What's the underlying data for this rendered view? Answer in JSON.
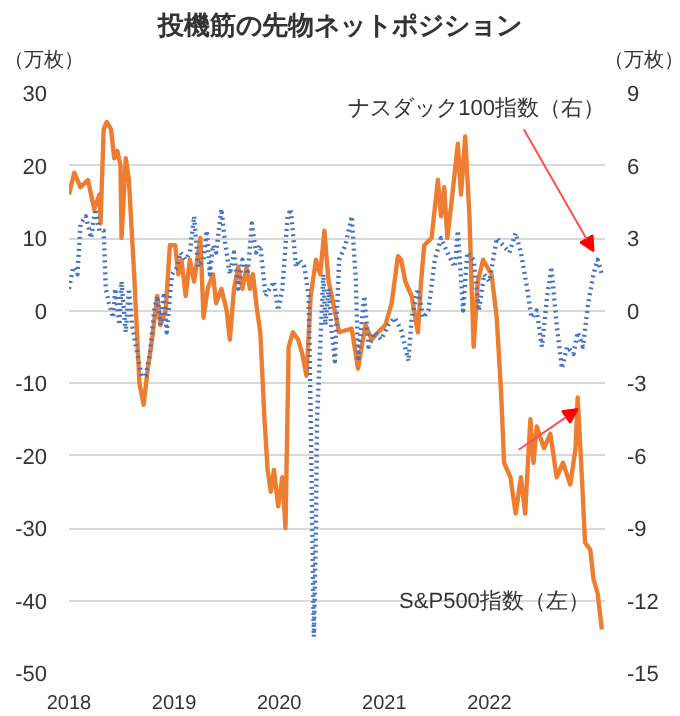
{
  "chart_data": {
    "type": "line",
    "title": "投機筋の先物ネットポジション",
    "ylabel": "（万枚）",
    "y2label": "（万枚）",
    "xlim": [
      2018,
      2023.1
    ],
    "xticks": [
      2018,
      2019,
      2020,
      2021,
      2022
    ],
    "ylim": [
      -50,
      30
    ],
    "yticks": [
      -50,
      -40,
      -30,
      -20,
      -10,
      0,
      10,
      20,
      30
    ],
    "y2lim": [
      -15,
      9
    ],
    "y2ticks": [
      -15,
      -12,
      -9,
      -6,
      -3,
      0,
      3,
      6,
      9
    ],
    "grid": "y",
    "series": [
      {
        "name": "S&P500指数（左）",
        "color": "#ed7d31",
        "line_style": "solid",
        "x": [
          2018.0,
          2018.05,
          2018.11,
          2018.18,
          2018.24,
          2018.29,
          2018.3,
          2018.33,
          2018.36,
          2018.4,
          2018.43,
          2018.46,
          2018.49,
          2018.5,
          2018.54,
          2018.57,
          2018.62,
          2018.67,
          2018.71,
          2018.75,
          2018.79,
          2018.84,
          2018.87,
          2018.92,
          2018.96,
          2019.01,
          2019.04,
          2019.07,
          2019.11,
          2019.15,
          2019.19,
          2019.25,
          2019.28,
          2019.32,
          2019.37,
          2019.4,
          2019.45,
          2019.5,
          2019.53,
          2019.57,
          2019.61,
          2019.65,
          2019.69,
          2019.72,
          2019.75,
          2019.79,
          2019.82,
          2019.86,
          2019.89,
          2019.92,
          2019.95,
          2019.99,
          2020.03,
          2020.06,
          2020.09,
          2020.13,
          2020.18,
          2020.22,
          2020.26,
          2020.3,
          2020.35,
          2020.39,
          2020.43,
          2020.47,
          2020.5,
          2020.57,
          2020.69,
          2020.75,
          2020.82,
          2020.88,
          2020.94,
          2021.01,
          2021.07,
          2021.13,
          2021.16,
          2021.2,
          2021.26,
          2021.32,
          2021.35,
          2021.38,
          2021.45,
          2021.51,
          2021.54,
          2021.57,
          2021.6,
          2021.64,
          2021.7,
          2021.73,
          2021.77,
          2021.81,
          2021.85,
          2021.89,
          2021.94,
          2021.98,
          2022.02,
          2022.07,
          2022.11,
          2022.14,
          2022.2,
          2022.25,
          2022.3,
          2022.34,
          2022.39,
          2022.42,
          2022.45,
          2022.52,
          2022.58,
          2022.64,
          2022.7,
          2022.77,
          2022.82,
          2022.84,
          2022.88,
          2022.91,
          2022.96,
          2022.99,
          2023.03,
          2023.07
        ],
        "values": [
          16,
          19,
          17,
          18,
          14,
          16,
          12,
          25,
          26,
          25,
          21,
          22,
          20,
          10,
          21,
          18,
          5,
          -10,
          -13,
          -8,
          -4,
          2,
          -2,
          0,
          9,
          9,
          5,
          7,
          2,
          7,
          4,
          10,
          -1,
          3,
          5,
          1,
          3,
          0,
          -4,
          3,
          6,
          3,
          6,
          3,
          5,
          0,
          -3,
          -15,
          -22,
          -25,
          -22,
          -27,
          -23,
          -30,
          -5,
          -3,
          -4,
          -6,
          -9,
          2,
          7,
          5,
          11,
          4,
          2,
          -3,
          -2.5,
          -8,
          -2,
          -4,
          -3,
          -2,
          1,
          7.5,
          7,
          4,
          2,
          -3,
          4,
          9,
          10,
          18,
          13,
          17,
          10,
          15,
          23,
          16,
          24,
          13,
          -5,
          4,
          7,
          6,
          5,
          -1,
          -11,
          -21,
          -23,
          -28,
          -23,
          -28,
          -15,
          -21,
          -16,
          -19,
          -17,
          -23,
          -21,
          -24,
          -19,
          -12,
          -23,
          -32,
          -33,
          -37,
          -39,
          -44
        ]
      },
      {
        "name": "ナスダック100指数（右）",
        "color": "#4472c4",
        "axis": "y2",
        "line_style": "dotted",
        "x": [
          2018.0,
          2018.04,
          2018.08,
          2018.11,
          2018.16,
          2018.21,
          2018.25,
          2018.29,
          2018.33,
          2018.35,
          2018.38,
          2018.42,
          2018.44,
          2018.48,
          2018.5,
          2018.54,
          2018.57,
          2018.6,
          2018.65,
          2018.69,
          2018.73,
          2018.77,
          2018.81,
          2018.84,
          2018.87,
          2018.9,
          2018.93,
          2018.98,
          2019.03,
          2019.06,
          2019.11,
          2019.15,
          2019.19,
          2019.23,
          2019.28,
          2019.31,
          2019.34,
          2019.37,
          2019.4,
          2019.45,
          2019.48,
          2019.53,
          2019.57,
          2019.61,
          2019.65,
          2019.7,
          2019.74,
          2019.78,
          2019.82,
          2019.87,
          2019.91,
          2019.95,
          2019.99,
          2020.03,
          2020.08,
          2020.11,
          2020.16,
          2020.19,
          2020.24,
          2020.28,
          2020.3,
          2020.33,
          2020.35,
          2020.36,
          2020.39,
          2020.42,
          2020.44,
          2020.47,
          2020.5,
          2020.53,
          2020.57,
          2020.63,
          2020.69,
          2020.73,
          2020.75,
          2020.81,
          2020.85,
          2020.91,
          2020.97,
          2021.04,
          2021.1,
          2021.16,
          2021.23,
          2021.26,
          2021.32,
          2021.37,
          2021.42,
          2021.48,
          2021.54,
          2021.6,
          2021.67,
          2021.7,
          2021.75,
          2021.79,
          2021.85,
          2021.9,
          2021.95,
          2022.0,
          2022.07,
          2022.13,
          2022.19,
          2022.25,
          2022.3,
          2022.36,
          2022.4,
          2022.45,
          2022.5,
          2022.55,
          2022.59,
          2022.64,
          2022.69,
          2022.74,
          2022.8,
          2022.84,
          2022.89,
          2022.94,
          2022.99,
          2023.03,
          2023.07
        ],
        "values": [
          0.9,
          1.8,
          1.5,
          3.6,
          3.9,
          3.0,
          4.2,
          3.3,
          3.3,
          0.9,
          0.3,
          -0.3,
          0.9,
          -0.6,
          1.2,
          -0.9,
          0.9,
          -0.6,
          -1.8,
          -2.7,
          -2.7,
          -1.8,
          0,
          0.6,
          -0.6,
          0.6,
          -0.9,
          1.5,
          1.8,
          2.4,
          2.1,
          2.4,
          3.9,
          1.8,
          2.1,
          3.3,
          1.5,
          2.7,
          2.4,
          4.2,
          3.0,
          1.5,
          2.4,
          0.9,
          2.1,
          1.5,
          3.6,
          2.4,
          2.7,
          0.6,
          0.9,
          1.2,
          0,
          0.9,
          3.9,
          4.2,
          1.8,
          2.1,
          1.8,
          0.6,
          -4.5,
          -13.5,
          -9,
          -4.5,
          -1.5,
          1.5,
          -0.6,
          0.9,
          -0.9,
          -2.1,
          2.1,
          2.7,
          3.9,
          1.2,
          -2.1,
          0.6,
          -1.5,
          -0.9,
          -1.2,
          -0.6,
          -0.3,
          -0.8,
          -2.1,
          -0.3,
          0.9,
          -0.3,
          0,
          2.1,
          3,
          2.4,
          1.8,
          3.3,
          0,
          2.4,
          2.1,
          0,
          1.5,
          1.2,
          3,
          2.7,
          2.4,
          3.2,
          2.4,
          0.9,
          -0.3,
          0,
          -1.5,
          0.6,
          1.8,
          -0.6,
          -2.4,
          -1.5,
          -1.8,
          -0.9,
          -1.5,
          0.3,
          1.5,
          2.1,
          1.5
        ]
      }
    ]
  }
}
